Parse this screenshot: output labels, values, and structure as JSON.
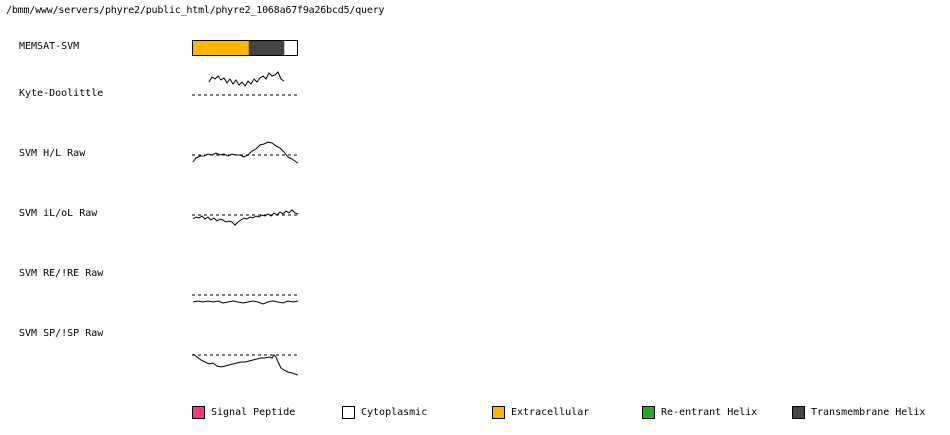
{
  "header": {
    "path": "/bmm/www/servers/phyre2/public_html/phyre2_1068a67f9a26bcd5/query"
  },
  "tracks": [
    {
      "label": "MEMSAT-SVM"
    },
    {
      "label": "Kyte-Doolittle"
    },
    {
      "label": "SVM H/L Raw"
    },
    {
      "label": "SVM iL/oL Raw"
    },
    {
      "label": "SVM RE/!RE Raw"
    },
    {
      "label": "SVM SP/!SP Raw"
    }
  ],
  "memsat_segments": [
    {
      "region": "Extracellular",
      "start": 0.0,
      "end": 0.54,
      "color": "#FFB400"
    },
    {
      "region": "Transmembrane Helix",
      "start": 0.54,
      "end": 0.88,
      "color": "#444444"
    },
    {
      "region": "Cytoplasmic",
      "start": 0.88,
      "end": 1.0,
      "color": "#FFFFFF"
    }
  ],
  "legend": [
    {
      "label": "Signal Peptide",
      "color": "#FF3380"
    },
    {
      "label": "Cytoplasmic",
      "color": "#FFFFFF"
    },
    {
      "label": "Extracellular",
      "color": "#FFB400"
    },
    {
      "label": "Re-entrant Helix",
      "color": "#22AA22"
    },
    {
      "label": "Transmembrane Helix",
      "color": "#444444"
    }
  ]
}
